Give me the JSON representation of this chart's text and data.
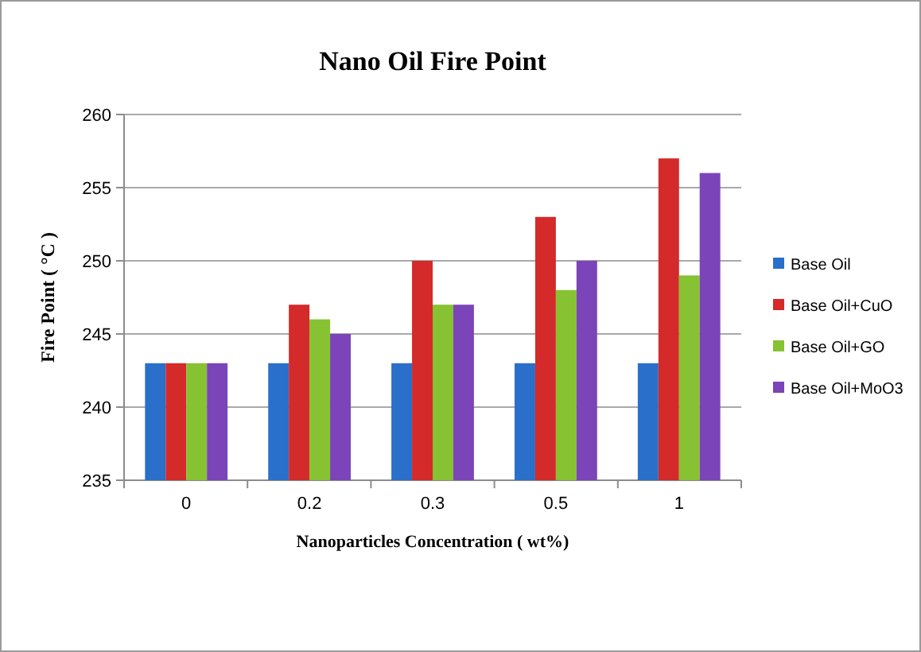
{
  "chart_data": {
    "type": "bar",
    "title": "Nano Oil Fire Point",
    "xlabel": "Nanoparticles Concentration ( wt%)",
    "ylabel": "Fire Point ( °C )",
    "categories": [
      "0",
      "0.2",
      "0.3",
      "0.5",
      "1"
    ],
    "series": [
      {
        "name": "Base Oil",
        "color": "#2a6fc9",
        "values": [
          243,
          243,
          243,
          243,
          243
        ]
      },
      {
        "name": "Base Oil+CuO",
        "color": "#d42a2a",
        "values": [
          243,
          247,
          250,
          253,
          257
        ]
      },
      {
        "name": "Base Oil+GO",
        "color": "#86c232",
        "values": [
          243,
          246,
          247,
          248,
          249
        ]
      },
      {
        "name": "Base Oil+MoO3",
        "color": "#7b44b8",
        "values": [
          243,
          245,
          247,
          250,
          256
        ]
      }
    ],
    "ylim": [
      235,
      260
    ],
    "yticks": [
      235,
      240,
      245,
      250,
      255,
      260
    ],
    "grid": "y",
    "legend": "right"
  }
}
